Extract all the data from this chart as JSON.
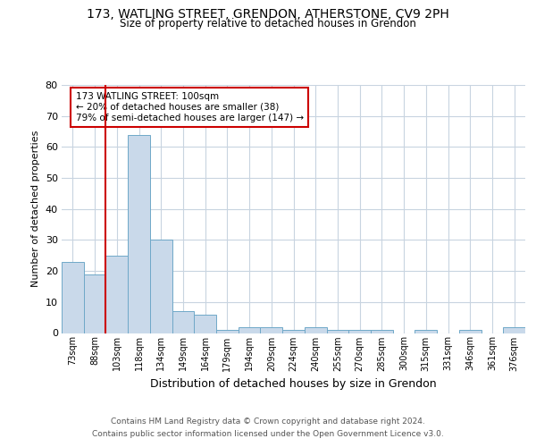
{
  "title_line1": "173, WATLING STREET, GRENDON, ATHERSTONE, CV9 2PH",
  "title_line2": "Size of property relative to detached houses in Grendon",
  "xlabel": "Distribution of detached houses by size in Grendon",
  "ylabel": "Number of detached properties",
  "footer_line1": "Contains HM Land Registry data © Crown copyright and database right 2024.",
  "footer_line2": "Contains public sector information licensed under the Open Government Licence v3.0.",
  "annotation_line1": "173 WATLING STREET: 100sqm",
  "annotation_line2": "← 20% of detached houses are smaller (38)",
  "annotation_line3": "79% of semi-detached houses are larger (147) →",
  "categories": [
    "73sqm",
    "88sqm",
    "103sqm",
    "118sqm",
    "134sqm",
    "149sqm",
    "164sqm",
    "179sqm",
    "194sqm",
    "209sqm",
    "224sqm",
    "240sqm",
    "255sqm",
    "270sqm",
    "285sqm",
    "300sqm",
    "315sqm",
    "331sqm",
    "346sqm",
    "361sqm",
    "376sqm"
  ],
  "values": [
    23,
    19,
    25,
    64,
    30,
    7,
    6,
    1,
    2,
    2,
    1,
    2,
    1,
    1,
    1,
    0,
    1,
    0,
    1,
    0,
    2
  ],
  "bar_color": "#c9d9ea",
  "bar_edge_color": "#6fa8c8",
  "highlight_color": "#cc0000",
  "ylim": [
    0,
    80
  ],
  "yticks": [
    0,
    10,
    20,
    30,
    40,
    50,
    60,
    70,
    80
  ],
  "background_color": "#ffffff",
  "grid_color": "#c8d4e0"
}
